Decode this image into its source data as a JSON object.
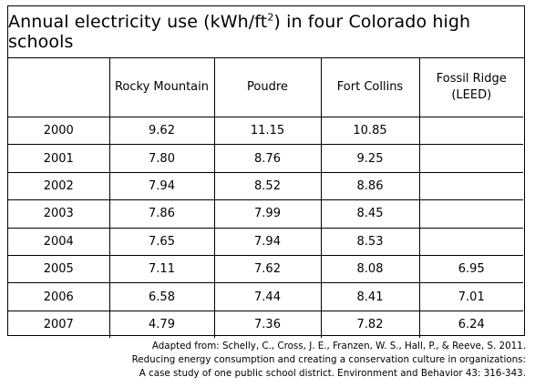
{
  "chart_data": {
    "type": "table",
    "title": "Annual electricity use (kWh/ft²) in four Colorado high schools",
    "title_parts": {
      "before_sup": "Annual electricity use (kWh/ft",
      "sup": "2",
      "after_sup": ") in four Colorado high schools"
    },
    "columns": [
      "",
      "Rocky Mountain",
      "Poudre",
      "Fort Collins",
      "Fossil Ridge (LEED)"
    ],
    "fossil_ridge_lines": [
      "Fossil Ridge",
      "(LEED)"
    ],
    "rows": [
      {
        "year": "2000",
        "values": [
          "9.62",
          "11.15",
          "10.85",
          ""
        ]
      },
      {
        "year": "2001",
        "values": [
          "7.80",
          "8.76",
          "9.25",
          ""
        ]
      },
      {
        "year": "2002",
        "values": [
          "7.94",
          "8.52",
          "8.86",
          ""
        ]
      },
      {
        "year": "2003",
        "values": [
          "7.86",
          "7.99",
          "8.45",
          ""
        ]
      },
      {
        "year": "2004",
        "values": [
          "7.65",
          "7.94",
          "8.53",
          ""
        ]
      },
      {
        "year": "2005",
        "values": [
          "7.11",
          "7.62",
          "8.08",
          "6.95"
        ]
      },
      {
        "year": "2006",
        "values": [
          "6.58",
          "7.44",
          "8.41",
          "7.01"
        ]
      },
      {
        "year": "2007",
        "values": [
          "4.79",
          "7.36",
          "7.82",
          "6.24"
        ]
      }
    ]
  },
  "citation": {
    "line1": "Adapted from: Schelly, C., Cross, J. E., Franzen, W. S., Hall, P., & Reeve, S. 2011.",
    "line2": "Reducing energy consumption and creating a conservation culture in organizations:",
    "line3": "A case study of one public school district. Environment and Behavior 43: 316-343."
  }
}
